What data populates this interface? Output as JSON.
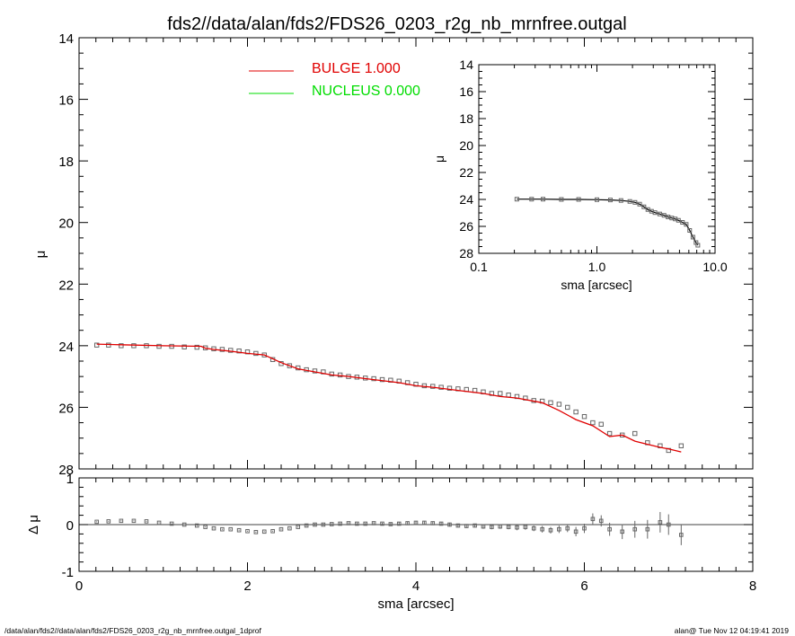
{
  "title": "fds2//data/alan/fds2/FDS26_0203_r2g_nb_mrnfree.outgal",
  "footer_left": "/data/alan/fds2//data/alan/fds2/FDS26_0203_r2g_nb_mrnfree.outgal_1dprof",
  "footer_right": "alan@  Tue Nov 12 04:19:41 2019",
  "colors": {
    "bulge": "#e00000",
    "nucleus": "#00dd00",
    "data": "#666666",
    "axis": "#000000"
  },
  "chart_data": [
    {
      "type": "scatter",
      "role": "main-profile",
      "xlabel": "",
      "ylabel": "μ",
      "xlim": [
        0,
        8
      ],
      "ylim": [
        28,
        14
      ],
      "yticks": [
        "14",
        "16",
        "18",
        "20",
        "22",
        "24",
        "26",
        "28"
      ],
      "legend": [
        {
          "label": "BULGE  1.000",
          "color": "#e00000"
        },
        {
          "label": "NUCLEUS  0.000",
          "color": "#00dd00"
        }
      ],
      "legend_position": "top-left",
      "data_points": {
        "x": [
          0.21,
          0.35,
          0.5,
          0.65,
          0.8,
          0.95,
          1.1,
          1.25,
          1.4,
          1.5,
          1.6,
          1.7,
          1.8,
          1.9,
          2.0,
          2.1,
          2.2,
          2.3,
          2.4,
          2.5,
          2.6,
          2.7,
          2.8,
          2.9,
          3.0,
          3.1,
          3.2,
          3.3,
          3.4,
          3.5,
          3.6,
          3.7,
          3.8,
          3.9,
          4.0,
          4.1,
          4.2,
          4.3,
          4.4,
          4.5,
          4.6,
          4.7,
          4.8,
          4.9,
          5.0,
          5.1,
          5.2,
          5.3,
          5.4,
          5.5,
          5.6,
          5.7,
          5.8,
          5.9,
          6.0,
          6.1,
          6.2,
          6.3,
          6.45,
          6.6,
          6.75,
          6.9,
          7.0,
          7.15
        ],
        "y": [
          23.98,
          23.98,
          24.0,
          24.0,
          24.0,
          24.02,
          24.02,
          24.04,
          24.05,
          24.07,
          24.1,
          24.12,
          24.15,
          24.17,
          24.2,
          24.25,
          24.3,
          24.45,
          24.58,
          24.65,
          24.72,
          24.78,
          24.82,
          24.85,
          24.92,
          24.95,
          25.0,
          25.02,
          25.05,
          25.07,
          25.1,
          25.12,
          25.15,
          25.2,
          25.25,
          25.3,
          25.32,
          25.35,
          25.38,
          25.4,
          25.42,
          25.45,
          25.5,
          25.55,
          25.55,
          25.6,
          25.65,
          25.7,
          25.78,
          25.8,
          25.85,
          25.9,
          26.0,
          26.15,
          26.3,
          26.5,
          26.55,
          26.85,
          26.9,
          26.85,
          27.15,
          27.25,
          27.4,
          27.25
        ]
      },
      "bulge_model": {
        "x": [
          0.21,
          0.5,
          1.0,
          1.45,
          1.5,
          1.6,
          1.8,
          2.0,
          2.2,
          2.4,
          2.6,
          2.8,
          3.0,
          3.2,
          3.5,
          3.8,
          4.0,
          4.2,
          4.5,
          4.8,
          5.0,
          5.2,
          5.5,
          5.7,
          5.9,
          6.1,
          6.3,
          6.45,
          6.6,
          6.75,
          6.9,
          7.0,
          7.15
        ],
        "y": [
          23.95,
          23.97,
          24.0,
          24.02,
          24.08,
          24.12,
          24.18,
          24.25,
          24.3,
          24.55,
          24.75,
          24.85,
          24.95,
          25.0,
          25.1,
          25.2,
          25.3,
          25.35,
          25.45,
          25.55,
          25.65,
          25.7,
          25.85,
          26.1,
          26.4,
          26.6,
          26.95,
          26.9,
          27.1,
          27.2,
          27.3,
          27.35,
          27.45
        ]
      }
    },
    {
      "type": "scatter",
      "role": "residuals",
      "xlabel": "sma [arcsec]",
      "ylabel": "Δ μ",
      "xlim": [
        0,
        8
      ],
      "ylim": [
        -1,
        1
      ],
      "xticks": [
        "0",
        "2",
        "4",
        "6",
        "8"
      ],
      "yticks": [
        "-1",
        "0",
        "1"
      ],
      "x": [
        0.21,
        0.35,
        0.5,
        0.65,
        0.8,
        0.95,
        1.1,
        1.25,
        1.4,
        1.5,
        1.6,
        1.7,
        1.8,
        1.9,
        2.0,
        2.1,
        2.2,
        2.3,
        2.4,
        2.5,
        2.6,
        2.7,
        2.8,
        2.9,
        3.0,
        3.1,
        3.2,
        3.3,
        3.4,
        3.5,
        3.6,
        3.7,
        3.8,
        3.9,
        4.0,
        4.1,
        4.2,
        4.3,
        4.4,
        4.5,
        4.6,
        4.7,
        4.8,
        4.9,
        5.0,
        5.1,
        5.2,
        5.3,
        5.4,
        5.5,
        5.6,
        5.7,
        5.8,
        5.9,
        6.0,
        6.1,
        6.2,
        6.3,
        6.45,
        6.6,
        6.75,
        6.9,
        7.0,
        7.15
      ],
      "y": [
        0.06,
        0.07,
        0.08,
        0.08,
        0.07,
        0.04,
        0.02,
        0.0,
        -0.02,
        -0.05,
        -0.08,
        -0.1,
        -0.1,
        -0.12,
        -0.14,
        -0.16,
        -0.15,
        -0.14,
        -0.1,
        -0.08,
        -0.05,
        -0.02,
        0.0,
        0.0,
        0.01,
        0.02,
        0.03,
        0.02,
        0.02,
        0.03,
        0.02,
        0.01,
        0.02,
        0.03,
        0.04,
        0.04,
        0.03,
        0.02,
        0.0,
        -0.02,
        -0.03,
        -0.02,
        -0.04,
        -0.05,
        -0.04,
        -0.05,
        -0.06,
        -0.05,
        -0.08,
        -0.1,
        -0.12,
        -0.1,
        -0.08,
        -0.15,
        -0.08,
        0.12,
        0.08,
        -0.1,
        -0.15,
        -0.1,
        -0.1,
        0.05,
        0.0,
        -0.22
      ],
      "err": [
        0.01,
        0.01,
        0.01,
        0.01,
        0.01,
        0.01,
        0.01,
        0.01,
        0.01,
        0.01,
        0.01,
        0.01,
        0.01,
        0.01,
        0.01,
        0.01,
        0.01,
        0.01,
        0.01,
        0.01,
        0.01,
        0.02,
        0.02,
        0.02,
        0.02,
        0.02,
        0.02,
        0.02,
        0.02,
        0.02,
        0.02,
        0.03,
        0.03,
        0.03,
        0.03,
        0.03,
        0.03,
        0.03,
        0.04,
        0.04,
        0.04,
        0.04,
        0.05,
        0.05,
        0.05,
        0.05,
        0.06,
        0.06,
        0.06,
        0.07,
        0.07,
        0.08,
        0.08,
        0.1,
        0.1,
        0.12,
        0.12,
        0.14,
        0.16,
        0.18,
        0.2,
        0.22,
        0.22,
        0.22
      ]
    },
    {
      "type": "scatter",
      "role": "inset-log-profile",
      "xlabel": "sma [arcsec]",
      "ylabel": "μ",
      "xscale": "log",
      "xlim": [
        0.1,
        10
      ],
      "ylim": [
        28,
        14
      ],
      "xticks": [
        "0.1",
        "1.0",
        "10.0"
      ],
      "yticks": [
        "14",
        "16",
        "18",
        "20",
        "22",
        "24",
        "26",
        "28"
      ],
      "x": [
        0.21,
        0.28,
        0.35,
        0.5,
        0.7,
        1.0,
        1.3,
        1.6,
        1.9,
        2.1,
        2.3,
        2.5,
        2.7,
        2.9,
        3.1,
        3.4,
        3.7,
        4.0,
        4.3,
        4.6,
        4.9,
        5.3,
        5.7,
        6.1,
        6.5,
        6.9,
        7.15
      ],
      "y": [
        23.98,
        23.98,
        23.98,
        24.0,
        24.0,
        24.02,
        24.04,
        24.08,
        24.15,
        24.22,
        24.35,
        24.55,
        24.75,
        24.88,
        24.98,
        25.08,
        25.18,
        25.3,
        25.38,
        25.45,
        25.55,
        25.7,
        25.85,
        26.3,
        26.8,
        27.2,
        27.4
      ]
    }
  ]
}
